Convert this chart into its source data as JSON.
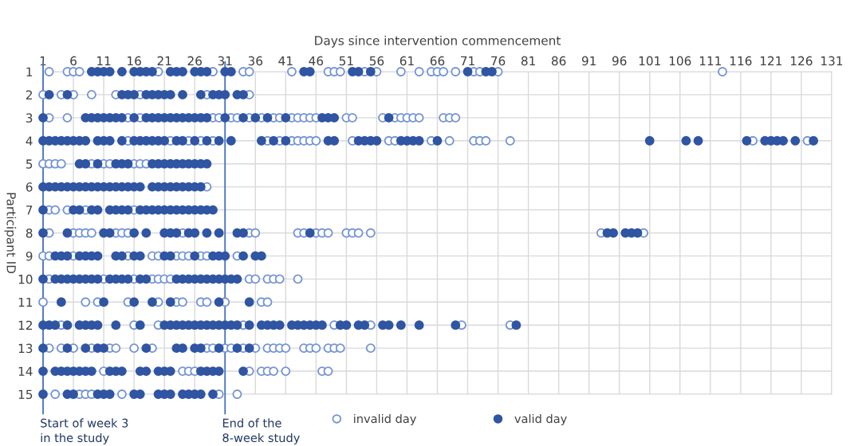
{
  "chart_data": {
    "type": "scatter",
    "xlabel": "Days since intervention commencement",
    "ylabel": "Participant ID",
    "xlim": [
      1,
      131
    ],
    "xticks": [
      1,
      6,
      11,
      16,
      21,
      26,
      31,
      36,
      41,
      46,
      51,
      56,
      61,
      66,
      71,
      76,
      81,
      86,
      91,
      96,
      101,
      106,
      111,
      116,
      121,
      126,
      131
    ],
    "ylim": [
      15,
      1
    ],
    "yticks": [
      1,
      2,
      3,
      4,
      5,
      6,
      7,
      8,
      9,
      10,
      11,
      12,
      13,
      14,
      15
    ],
    "grid": true,
    "legend": "bottom",
    "ref_lines": [
      {
        "axis": "x",
        "value": 1,
        "label": "Start of week 3\nin the study",
        "color": "#4472c4"
      },
      {
        "axis": "x",
        "value": 31,
        "label": "End of the\n8-week study",
        "color": "#4472c4"
      }
    ],
    "series": [
      {
        "name": "invalid day",
        "color": "#7393d4",
        "marker": "circle_open",
        "x": [
          2,
          5,
          6,
          7,
          20,
          29,
          34,
          35,
          42,
          48,
          49,
          50,
          54,
          56,
          60,
          63,
          65,
          66,
          67,
          69,
          72,
          73,
          76,
          113,
          1,
          4,
          6,
          9,
          13,
          17,
          28,
          35,
          2,
          5,
          15,
          17,
          29,
          30,
          32,
          33,
          35,
          37,
          39,
          40,
          42,
          43,
          44,
          45,
          46,
          51,
          52,
          57,
          59,
          60,
          61,
          62,
          63,
          67,
          68,
          69,
          15,
          22,
          25,
          27,
          29,
          38,
          40,
          42,
          43,
          44,
          45,
          46,
          52,
          58,
          59,
          65,
          68,
          72,
          73,
          74,
          78,
          118,
          127,
          1,
          2,
          3,
          4,
          9,
          11,
          12,
          16,
          17,
          18,
          28,
          2,
          3,
          5,
          8,
          16,
          2,
          6,
          7,
          8,
          9,
          13,
          14,
          15,
          24,
          35,
          36,
          43,
          44,
          46,
          47,
          48,
          51,
          52,
          53,
          55,
          93,
          100,
          1,
          2,
          6,
          15,
          19,
          20,
          23,
          24,
          25,
          27,
          28,
          33,
          2,
          11,
          16,
          19,
          20,
          21,
          22,
          35,
          36,
          38,
          39,
          40,
          43,
          1,
          8,
          10,
          15,
          20,
          23,
          24,
          27,
          28,
          31,
          37,
          38,
          4,
          16,
          20,
          34,
          49,
          55,
          70,
          78,
          2,
          4,
          6,
          9,
          12,
          13,
          16,
          19,
          28,
          29,
          31,
          32,
          34,
          36,
          38,
          39,
          40,
          41,
          44,
          45,
          46,
          48,
          49,
          50,
          55,
          11,
          24,
          25,
          26,
          35,
          37,
          38,
          39,
          41,
          47,
          48,
          3,
          7,
          8,
          9,
          14,
          30,
          33
        ],
        "values": [
          1,
          1,
          1,
          1,
          1,
          1,
          1,
          1,
          1,
          1,
          1,
          1,
          1,
          1,
          1,
          1,
          1,
          1,
          1,
          1,
          1,
          1,
          1,
          1,
          2,
          2,
          2,
          2,
          2,
          2,
          2,
          2,
          3,
          3,
          3,
          3,
          3,
          3,
          3,
          3,
          3,
          3,
          3,
          3,
          3,
          3,
          3,
          3,
          3,
          3,
          3,
          3,
          3,
          3,
          3,
          3,
          3,
          3,
          3,
          3,
          4,
          4,
          4,
          4,
          4,
          4,
          4,
          4,
          4,
          4,
          4,
          4,
          4,
          4,
          4,
          4,
          4,
          4,
          4,
          4,
          4,
          4,
          4,
          5,
          5,
          5,
          5,
          5,
          5,
          5,
          5,
          5,
          5,
          6,
          7,
          7,
          7,
          7,
          7,
          8,
          8,
          8,
          8,
          8,
          8,
          8,
          8,
          8,
          8,
          8,
          8,
          8,
          8,
          8,
          8,
          8,
          8,
          8,
          8,
          8,
          8,
          9,
          9,
          9,
          9,
          9,
          9,
          9,
          9,
          9,
          9,
          9,
          9,
          10,
          10,
          10,
          10,
          10,
          10,
          10,
          10,
          10,
          10,
          10,
          10,
          10,
          11,
          11,
          11,
          11,
          11,
          11,
          11,
          11,
          11,
          11,
          11,
          11,
          12,
          12,
          12,
          12,
          12,
          12,
          12,
          12,
          13,
          13,
          13,
          13,
          13,
          13,
          13,
          13,
          13,
          13,
          13,
          13,
          13,
          13,
          13,
          13,
          13,
          13,
          13,
          13,
          13,
          13,
          13,
          13,
          13,
          14,
          14,
          14,
          14,
          14,
          14,
          14,
          14,
          14,
          14,
          14,
          15,
          15,
          15,
          15,
          15,
          15,
          15
        ]
      },
      {
        "name": "valid day",
        "color": "#2f55a3",
        "marker": "circle",
        "x": [
          9,
          10,
          11,
          12,
          14,
          16,
          17,
          18,
          19,
          22,
          23,
          24,
          26,
          27,
          28,
          31,
          32,
          44,
          45,
          52,
          53,
          55,
          71,
          74,
          75,
          2,
          5,
          14,
          15,
          16,
          18,
          19,
          20,
          21,
          22,
          24,
          27,
          29,
          30,
          31,
          33,
          34,
          1,
          8,
          9,
          10,
          11,
          12,
          13,
          14,
          16,
          18,
          19,
          20,
          21,
          22,
          23,
          24,
          25,
          26,
          27,
          28,
          31,
          34,
          36,
          38,
          41,
          47,
          48,
          49,
          58,
          1,
          2,
          3,
          4,
          5,
          6,
          7,
          8,
          10,
          11,
          12,
          14,
          16,
          17,
          18,
          19,
          20,
          21,
          23,
          24,
          26,
          28,
          30,
          32,
          37,
          39,
          41,
          48,
          49,
          53,
          54,
          55,
          56,
          60,
          61,
          62,
          63,
          66,
          101,
          107,
          109,
          117,
          120,
          121,
          122,
          123,
          125,
          128,
          7,
          8,
          10,
          13,
          14,
          15,
          19,
          20,
          21,
          22,
          23,
          24,
          25,
          26,
          27,
          28,
          1,
          2,
          3,
          4,
          5,
          6,
          7,
          8,
          9,
          10,
          11,
          12,
          13,
          14,
          15,
          16,
          17,
          19,
          20,
          21,
          22,
          23,
          24,
          25,
          26,
          27,
          1,
          6,
          7,
          9,
          10,
          12,
          13,
          14,
          15,
          17,
          18,
          19,
          20,
          21,
          22,
          23,
          24,
          25,
          26,
          27,
          28,
          29,
          1,
          5,
          11,
          12,
          16,
          18,
          21,
          22,
          23,
          25,
          26,
          28,
          30,
          33,
          34,
          45,
          94,
          95,
          97,
          98,
          99,
          3,
          4,
          5,
          7,
          8,
          9,
          10,
          13,
          14,
          16,
          17,
          21,
          22,
          26,
          29,
          30,
          31,
          34,
          36,
          37,
          1,
          3,
          4,
          5,
          6,
          7,
          8,
          9,
          10,
          12,
          13,
          14,
          15,
          17,
          18,
          23,
          24,
          25,
          26,
          27,
          28,
          29,
          30,
          31,
          32,
          33,
          4,
          11,
          16,
          19,
          22,
          30,
          35,
          1,
          2,
          3,
          5,
          7,
          8,
          9,
          10,
          13,
          17,
          21,
          22,
          23,
          24,
          25,
          26,
          27,
          28,
          29,
          30,
          31,
          32,
          33,
          35,
          37,
          38,
          39,
          40,
          42,
          43,
          44,
          45,
          46,
          47,
          50,
          51,
          53,
          54,
          57,
          58,
          60,
          63,
          69,
          79,
          1,
          5,
          8,
          10,
          11,
          18,
          23,
          24,
          26,
          27,
          30,
          33,
          35,
          1,
          3,
          4,
          5,
          6,
          7,
          8,
          9,
          12,
          13,
          14,
          17,
          18,
          20,
          21,
          22,
          27,
          28,
          29,
          30,
          34,
          1,
          5,
          6,
          10,
          11,
          12,
          16,
          17,
          20,
          21,
          22,
          24,
          25,
          26,
          27,
          29
        ],
        "values": [
          1,
          1,
          1,
          1,
          1,
          1,
          1,
          1,
          1,
          1,
          1,
          1,
          1,
          1,
          1,
          1,
          1,
          1,
          1,
          1,
          1,
          1,
          1,
          1,
          1,
          2,
          2,
          2,
          2,
          2,
          2,
          2,
          2,
          2,
          2,
          2,
          2,
          2,
          2,
          2,
          2,
          2,
          3,
          3,
          3,
          3,
          3,
          3,
          3,
          3,
          3,
          3,
          3,
          3,
          3,
          3,
          3,
          3,
          3,
          3,
          3,
          3,
          3,
          3,
          3,
          3,
          3,
          3,
          3,
          3,
          3,
          4,
          4,
          4,
          4,
          4,
          4,
          4,
          4,
          4,
          4,
          4,
          4,
          4,
          4,
          4,
          4,
          4,
          4,
          4,
          4,
          4,
          4,
          4,
          4,
          4,
          4,
          4,
          4,
          4,
          4,
          4,
          4,
          4,
          4,
          4,
          4,
          4,
          4,
          4,
          4,
          4,
          4,
          4,
          4,
          4,
          4,
          4,
          4,
          5,
          5,
          5,
          5,
          5,
          5,
          5,
          5,
          5,
          5,
          5,
          5,
          5,
          5,
          5,
          5,
          6,
          6,
          6,
          6,
          6,
          6,
          6,
          6,
          6,
          6,
          6,
          6,
          6,
          6,
          6,
          6,
          6,
          6,
          6,
          6,
          6,
          6,
          6,
          6,
          6,
          6,
          7,
          7,
          7,
          7,
          7,
          7,
          7,
          7,
          7,
          7,
          7,
          7,
          7,
          7,
          7,
          7,
          7,
          7,
          7,
          7,
          7,
          7,
          8,
          8,
          8,
          8,
          8,
          8,
          8,
          8,
          8,
          8,
          8,
          8,
          8,
          8,
          8,
          8,
          8,
          8,
          8,
          8,
          8,
          9,
          9,
          9,
          9,
          9,
          9,
          9,
          9,
          9,
          9,
          9,
          9,
          9,
          9,
          9,
          9,
          9,
          9,
          9,
          9,
          10,
          10,
          10,
          10,
          10,
          10,
          10,
          10,
          10,
          10,
          10,
          10,
          10,
          10,
          10,
          10,
          10,
          10,
          10,
          10,
          10,
          10,
          10,
          10,
          10,
          10,
          11,
          11,
          11,
          11,
          11,
          11,
          11,
          12,
          12,
          12,
          12,
          12,
          12,
          12,
          12,
          12,
          12,
          12,
          12,
          12,
          12,
          12,
          12,
          12,
          12,
          12,
          12,
          12,
          12,
          12,
          12,
          12,
          12,
          12,
          12,
          12,
          12,
          12,
          12,
          12,
          12,
          12,
          12,
          12,
          12,
          12,
          12,
          12,
          12,
          12,
          12,
          13,
          13,
          13,
          13,
          13,
          13,
          13,
          13,
          13,
          13,
          13,
          13,
          13,
          14,
          14,
          14,
          14,
          14,
          14,
          14,
          14,
          14,
          14,
          14,
          14,
          14,
          14,
          14,
          14,
          14,
          14,
          14,
          14,
          14,
          15,
          15,
          15,
          15,
          15,
          15,
          15,
          15,
          15,
          15,
          15,
          15,
          15,
          15,
          15,
          15
        ]
      }
    ]
  }
}
